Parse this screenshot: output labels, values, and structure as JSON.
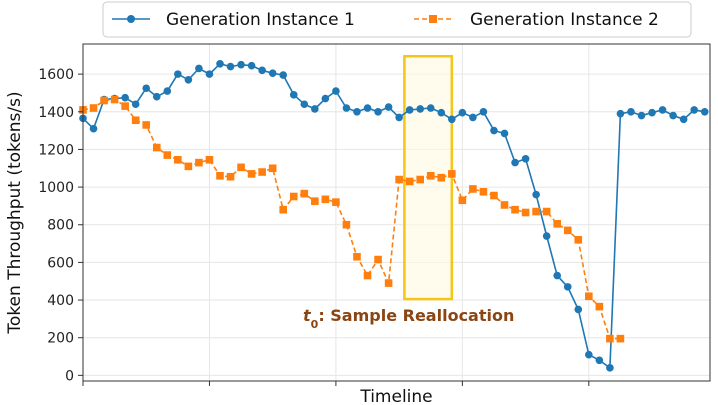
{
  "chart_data": {
    "type": "line",
    "title": "",
    "xlabel": "Timeline",
    "ylabel": "Token Throughput (tokens/s)",
    "xlim": [
      0,
      119
    ],
    "ylim": [
      -30,
      1760
    ],
    "yticks": [
      0,
      200,
      400,
      600,
      800,
      1000,
      1200,
      1400,
      1600
    ],
    "xticks": [
      0,
      24,
      48,
      72,
      96
    ],
    "xtick_labels_shown": false,
    "grid": true,
    "legend": {
      "placement": "top-center",
      "entries": [
        "Generation Instance 1",
        "Generation Instance 2"
      ]
    },
    "annotation": {
      "text_italic": "t",
      "text_sub": "0",
      "text": ": Sample Reallocation",
      "highlight_x": [
        61,
        70
      ],
      "highlight_y": [
        405,
        1695
      ],
      "color": "#f5c518",
      "text_color": "#8b4513"
    },
    "series": [
      {
        "name": "Generation Instance 1",
        "color": "#1f77b4",
        "marker": "circle",
        "linestyle": "solid",
        "x": [
          0,
          2,
          4,
          6,
          8,
          10,
          12,
          14,
          16,
          18,
          20,
          22,
          24,
          26,
          28,
          30,
          32,
          34,
          36,
          38,
          40,
          42,
          44,
          46,
          48,
          50,
          52,
          54,
          56,
          58,
          60,
          62,
          64,
          66,
          68,
          70,
          72,
          74,
          76,
          78,
          80,
          82,
          84,
          86,
          88,
          90,
          92,
          94,
          96,
          98,
          100,
          102,
          104,
          106,
          108,
          110,
          112,
          114,
          116,
          118
        ],
        "values": [
          1365,
          1310,
          1465,
          1470,
          1475,
          1440,
          1525,
          1480,
          1510,
          1600,
          1570,
          1630,
          1600,
          1655,
          1640,
          1650,
          1645,
          1620,
          1605,
          1595,
          1490,
          1440,
          1415,
          1470,
          1510,
          1420,
          1400,
          1420,
          1400,
          1425,
          1370,
          1410,
          1415,
          1420,
          1395,
          1360,
          1395,
          1370,
          1400,
          1300,
          1285,
          1130,
          1150,
          960,
          740,
          530,
          470,
          350,
          110,
          80,
          40,
          1390,
          1400,
          1380,
          1395,
          1410,
          1380,
          1360,
          1410,
          1400
        ]
      },
      {
        "name": "Generation Instance 2",
        "color": "#ff7f0e",
        "marker": "square",
        "linestyle": "dashed",
        "x": [
          0,
          2,
          4,
          6,
          8,
          10,
          12,
          14,
          16,
          18,
          20,
          22,
          24,
          26,
          28,
          30,
          32,
          34,
          36,
          38,
          40,
          42,
          44,
          46,
          48,
          50,
          52,
          54,
          56,
          58,
          60,
          62,
          64,
          66,
          68,
          70,
          72,
          74,
          76,
          78,
          80,
          82,
          84,
          86,
          88,
          90,
          92,
          94,
          96,
          98,
          100,
          102
        ],
        "values": [
          1410,
          1420,
          1460,
          1465,
          1430,
          1355,
          1330,
          1210,
          1170,
          1145,
          1110,
          1130,
          1145,
          1060,
          1055,
          1105,
          1070,
          1080,
          1100,
          880,
          950,
          965,
          925,
          935,
          920,
          800,
          630,
          530,
          615,
          490,
          1040,
          1030,
          1040,
          1060,
          1050,
          1070,
          930,
          990,
          975,
          955,
          905,
          880,
          865,
          870,
          870,
          805,
          770,
          720,
          420,
          365,
          195,
          195
        ]
      }
    ]
  }
}
